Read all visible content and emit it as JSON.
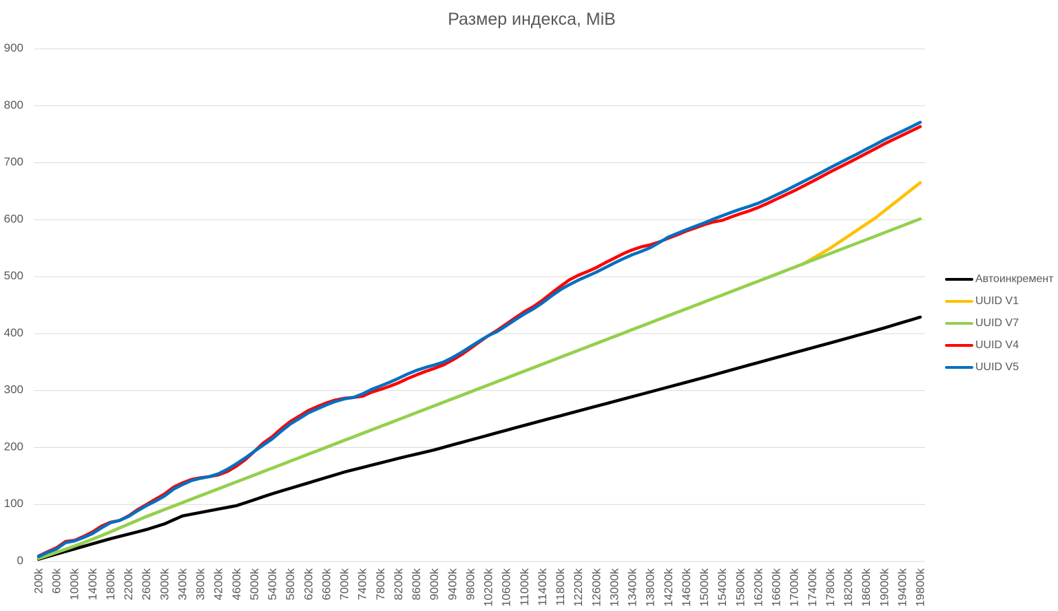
{
  "title": "Размер индекса, MiB",
  "chart_data": {
    "type": "line",
    "title": "Размер индекса, MiB",
    "xlabel": "",
    "ylabel": "",
    "x_unit": "k rows",
    "x": [
      200,
      400,
      600,
      800,
      1000,
      1200,
      1400,
      1600,
      1800,
      2000,
      2200,
      2400,
      2600,
      2800,
      3000,
      3200,
      3400,
      3600,
      3800,
      4000,
      4200,
      4400,
      4600,
      4800,
      5000,
      5200,
      5400,
      5600,
      5800,
      6000,
      6200,
      6400,
      6600,
      6800,
      7000,
      7200,
      7400,
      7600,
      7800,
      8000,
      8200,
      8400,
      8600,
      8800,
      9000,
      9200,
      9400,
      9600,
      9800,
      10000,
      10200,
      10400,
      10600,
      10800,
      11000,
      11200,
      11400,
      11600,
      11800,
      12000,
      12200,
      12400,
      12600,
      12800,
      13000,
      13200,
      13400,
      13600,
      13800,
      14000,
      14200,
      14400,
      14600,
      14800,
      15000,
      15200,
      15400,
      15600,
      15800,
      16000,
      16200,
      16400,
      16600,
      16800,
      17000,
      17200,
      17400,
      17600,
      17800,
      18000,
      18200,
      18400,
      18600,
      18800,
      19000,
      19200,
      19400,
      19600,
      19800
    ],
    "x_tick_labels": [
      "200k",
      "600k",
      "1000k",
      "1400k",
      "1800k",
      "2200k",
      "2600k",
      "3000k",
      "3400k",
      "3800k",
      "4200k",
      "4600k",
      "5000k",
      "5400k",
      "5800k",
      "6200k",
      "6600k",
      "7000k",
      "7400k",
      "7800k",
      "8200k",
      "8600k",
      "9000k",
      "9400k",
      "9800k",
      "10200k",
      "10600k",
      "11000k",
      "11400k",
      "11800k",
      "12200k",
      "12600k",
      "13000k",
      "13400k",
      "13800k",
      "14200k",
      "14600k",
      "15000k",
      "15400k",
      "15800k",
      "16200k",
      "16600k",
      "17000k",
      "17400k",
      "17800k",
      "18200k",
      "18600k",
      "19000k",
      "19400k",
      "19800k"
    ],
    "y_ticks": [
      0,
      100,
      200,
      300,
      400,
      500,
      600,
      700,
      800,
      900
    ],
    "ylim": [
      0,
      900
    ],
    "grid": "horizontal",
    "legend_position": "right",
    "series": [
      {
        "name": "Автоинкремент",
        "color": "#000000",
        "values": [
          4,
          8.5,
          13.0,
          17.5,
          22.0,
          26.5,
          31.0,
          35.5,
          40.0,
          44.0,
          48.0,
          52.0,
          56.0,
          61.0,
          66.0,
          73.0,
          80.0,
          83.0,
          86.0,
          89.0,
          92.0,
          95.0,
          98.0,
          103.2,
          108.5,
          113.8,
          119.0,
          123.8,
          128.5,
          133.2,
          138.0,
          142.8,
          147.5,
          152.2,
          157.0,
          161.0,
          165.0,
          169.0,
          173.0,
          177.0,
          181.0,
          184.8,
          188.5,
          192.2,
          196.0,
          200.3,
          204.6,
          208.9,
          213.2,
          217.5,
          221.8,
          226.1,
          230.4,
          234.7,
          239.0,
          243.2,
          247.4,
          251.6,
          255.8,
          260.0,
          264.2,
          268.4,
          272.6,
          276.8,
          281.0,
          285.2,
          289.4,
          293.6,
          297.8,
          302.0,
          306.2,
          310.4,
          314.6,
          318.8,
          323.0,
          327.4,
          331.8,
          336.2,
          340.6,
          345.0,
          349.3,
          353.6,
          357.9,
          362.2,
          366.5,
          370.8,
          375.1,
          379.4,
          383.7,
          388.0,
          392.4,
          396.8,
          401.2,
          405.6,
          410.0,
          414.8,
          419.5,
          424.2,
          429
        ]
      },
      {
        "name": "UUID V1",
        "color": "#FFC000",
        "values": [
          5.3,
          10.6,
          16.0,
          21.5,
          27.0,
          33.0,
          39.0,
          45.5,
          52.0,
          58.8,
          65.5,
          72.2,
          79.0,
          85.1,
          91.2,
          97.2,
          103.3,
          109.4,
          115.5,
          121.5,
          127.6,
          133.7,
          139.8,
          145.8,
          151.9,
          158.0,
          164.1,
          170.1,
          176.2,
          182.3,
          188.4,
          194.4,
          200.5,
          206.6,
          212.7,
          218.7,
          224.8,
          230.9,
          237.0,
          243.0,
          249.1,
          255.2,
          261.3,
          267.3,
          273.4,
          279.5,
          285.6,
          291.6,
          297.7,
          303.8,
          309.9,
          315.9,
          322.0,
          328.1,
          334.2,
          340.2,
          346.3,
          352.4,
          358.5,
          364.6,
          370.6,
          376.7,
          382.8,
          388.9,
          394.9,
          401.0,
          407.1,
          413.2,
          419.2,
          425.3,
          431.4,
          437.5,
          443.5,
          449.6,
          455.7,
          461.8,
          467.8,
          473.9,
          480.0,
          486.1,
          492.1,
          498.2,
          504.3,
          510.4,
          516.4,
          522.5,
          531.6,
          540.8,
          550.0,
          560.6,
          571.2,
          581.8,
          592.4,
          603.0,
          615.4,
          627.8,
          640.2,
          652.6,
          665
        ]
      },
      {
        "name": "UUID V7",
        "color": "#92D050",
        "values": [
          5.3,
          10.6,
          16.0,
          21.5,
          27.0,
          33.0,
          39.0,
          45.5,
          52.0,
          58.8,
          65.5,
          72.2,
          79.0,
          85.1,
          91.2,
          97.2,
          103.3,
          109.4,
          115.5,
          121.5,
          127.6,
          133.7,
          139.8,
          145.8,
          151.9,
          158.0,
          164.1,
          170.1,
          176.2,
          182.3,
          188.4,
          194.4,
          200.5,
          206.6,
          212.7,
          218.7,
          224.8,
          230.9,
          237.0,
          243.0,
          249.1,
          255.2,
          261.3,
          267.3,
          273.4,
          279.5,
          285.6,
          291.6,
          297.7,
          303.8,
          309.9,
          315.9,
          322.0,
          328.1,
          334.2,
          340.2,
          346.3,
          352.4,
          358.5,
          364.6,
          370.6,
          376.7,
          382.8,
          388.9,
          394.9,
          401.0,
          407.1,
          413.2,
          419.2,
          425.3,
          431.4,
          437.5,
          443.5,
          449.6,
          455.7,
          461.8,
          467.8,
          473.9,
          480.0,
          486.1,
          492.1,
          498.2,
          504.3,
          510.4,
          516.4,
          522.5,
          528.6,
          534.7,
          540.7,
          546.8,
          552.9,
          559.0,
          565.0,
          571.1,
          577.2,
          583.3,
          589.3,
          595.4,
          601.5
        ]
      },
      {
        "name": "UUID V4",
        "color": "#FF0000",
        "values": [
          9.5,
          17,
          24,
          35,
          37,
          44,
          52,
          62,
          69,
          72,
          80,
          91,
          100,
          109.5,
          118.5,
          130.5,
          138,
          144,
          147,
          149,
          152,
          158,
          167.3,
          179,
          193.5,
          208.1,
          219.5,
          233.5,
          246.0,
          255.5,
          265,
          272,
          278.5,
          283.5,
          286.5,
          288,
          290,
          297,
          302,
          307.5,
          313.5,
          321,
          327.5,
          333.5,
          339,
          345,
          353.5,
          363,
          374,
          385.5,
          396.5,
          406,
          417,
          428.0,
          438.5,
          447.5,
          458.5,
          471,
          483,
          494.5,
          502.5,
          509,
          516,
          524.5,
          532.5,
          540.5,
          547.1,
          552.5,
          556,
          561,
          567.5,
          573.5,
          580.1,
          585.5,
          591.4,
          596,
          599,
          605,
          610.5,
          615.5,
          621.5,
          628.5,
          636.0,
          643.5,
          650.9,
          659,
          667.2,
          675.4,
          684.0,
          692.0,
          700.0,
          708.0,
          716.4,
          724.5,
          733.0,
          740.6,
          748.3,
          755.7,
          763.5
        ]
      },
      {
        "name": "UUID V5",
        "color": "#0070C0",
        "values": [
          8.5,
          16,
          22,
          33,
          36,
          42,
          49,
          59,
          68,
          72,
          79,
          89,
          98,
          106,
          115,
          127,
          135,
          142,
          146,
          149,
          154,
          162,
          171.5,
          182,
          193.5,
          204.5,
          215.5,
          229,
          241.5,
          251,
          261,
          268,
          275,
          281,
          285.5,
          288,
          294,
          302,
          308,
          314.5,
          321.5,
          329,
          335.5,
          340.5,
          345,
          350,
          358,
          367,
          377,
          387,
          396.5,
          404,
          414,
          424.5,
          434.5,
          443.5,
          454,
          466,
          477,
          486,
          494,
          501,
          508,
          516,
          524,
          531.5,
          538.5,
          544.5,
          551,
          560,
          569.5,
          576,
          582.5,
          588.5,
          594.5,
          601,
          607,
          613,
          618.5,
          623.5,
          629,
          636,
          643.5,
          651,
          659,
          667,
          675,
          683,
          691.5,
          699.5,
          707.5,
          715.5,
          724,
          732,
          740.5,
          748,
          755.5,
          763,
          771
        ]
      }
    ]
  },
  "styles": {
    "text_color": "#595959",
    "grid_color": "#D9D9D9",
    "background": "#FFFFFF"
  }
}
